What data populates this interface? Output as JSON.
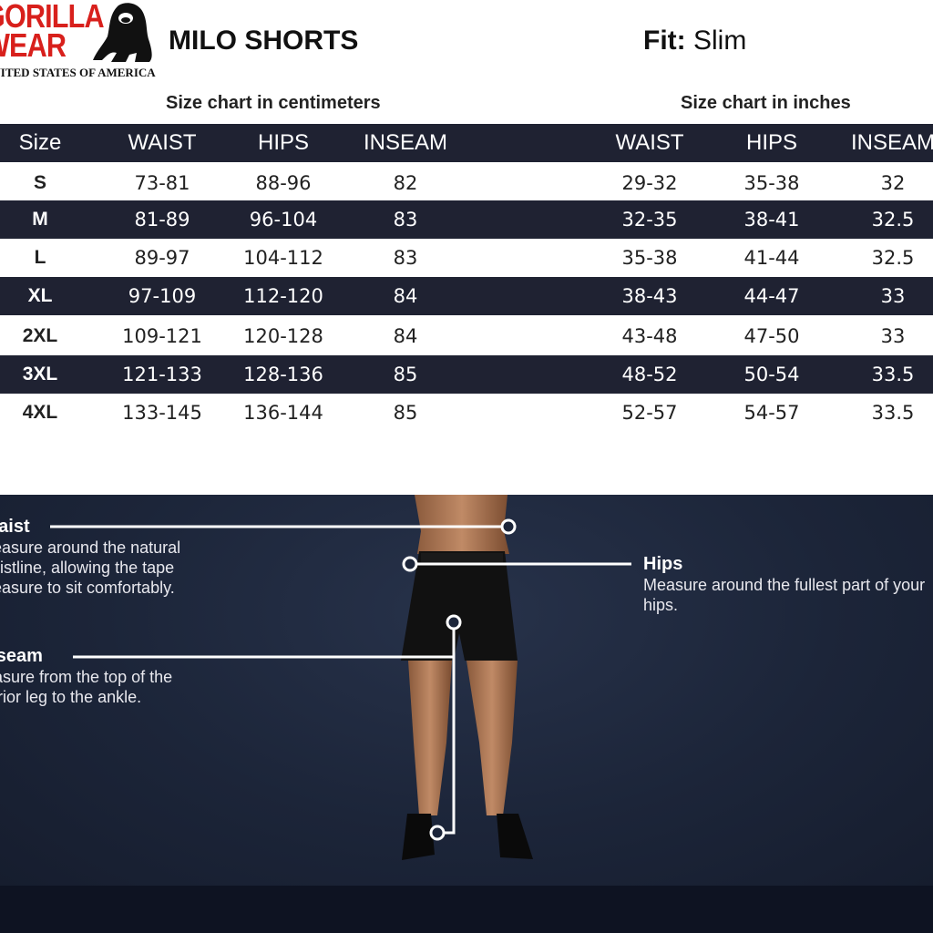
{
  "brand": {
    "line1": "GORILLA",
    "line2": "WEAR",
    "tagline": "UNITED STATES OF AMERICA"
  },
  "title": "MILO SHORTS",
  "fit": {
    "label": "Fit:",
    "value": "Slim"
  },
  "cm_caption": "Size chart in centimeters",
  "in_caption": "Size chart in inches",
  "headers": {
    "size": "Size",
    "cm": [
      "WAIST",
      "HIPS",
      "INSEAM"
    ],
    "in": [
      "WAIST",
      "HIPS",
      "INSEAM"
    ]
  },
  "rows": [
    {
      "size": "S",
      "cm": [
        "73-81",
        "88-96",
        "82"
      ],
      "in": [
        "29-32",
        "35-38",
        "32"
      ]
    },
    {
      "size": "M",
      "cm": [
        "81-89",
        "96-104",
        "83"
      ],
      "in": [
        "32-35",
        "38-41",
        "32.5"
      ]
    },
    {
      "size": "L",
      "cm": [
        "89-97",
        "104-112",
        "83"
      ],
      "in": [
        "35-38",
        "41-44",
        "32.5"
      ]
    },
    {
      "size": "XL",
      "cm": [
        "97-109",
        "112-120",
        "84"
      ],
      "in": [
        "38-43",
        "44-47",
        "33"
      ]
    },
    {
      "size": "2XL",
      "cm": [
        "109-121",
        "120-128",
        "84"
      ],
      "in": [
        "43-48",
        "47-50",
        "33"
      ]
    },
    {
      "size": "3XL",
      "cm": [
        "121-133",
        "128-136",
        "85"
      ],
      "in": [
        "48-52",
        "50-54",
        "33.5"
      ]
    },
    {
      "size": "4XL",
      "cm": [
        "133-145",
        "136-144",
        "85"
      ],
      "in": [
        "52-57",
        "54-57",
        "33.5"
      ]
    }
  ],
  "guide": {
    "waist": {
      "title": "Waist",
      "text": "Measure around the natural waistline, allowing the tape measure to sit comfortably."
    },
    "hips": {
      "title": "Hips",
      "text": "Measure around the fullest part of your hips."
    },
    "inseam": {
      "title": "Inseam",
      "text": "Measure from the top of the interior leg to the ankle."
    }
  },
  "colors": {
    "brand_red": "#d8201c",
    "dark_row": "#1f2232",
    "guide_bg": "#1c2539"
  }
}
